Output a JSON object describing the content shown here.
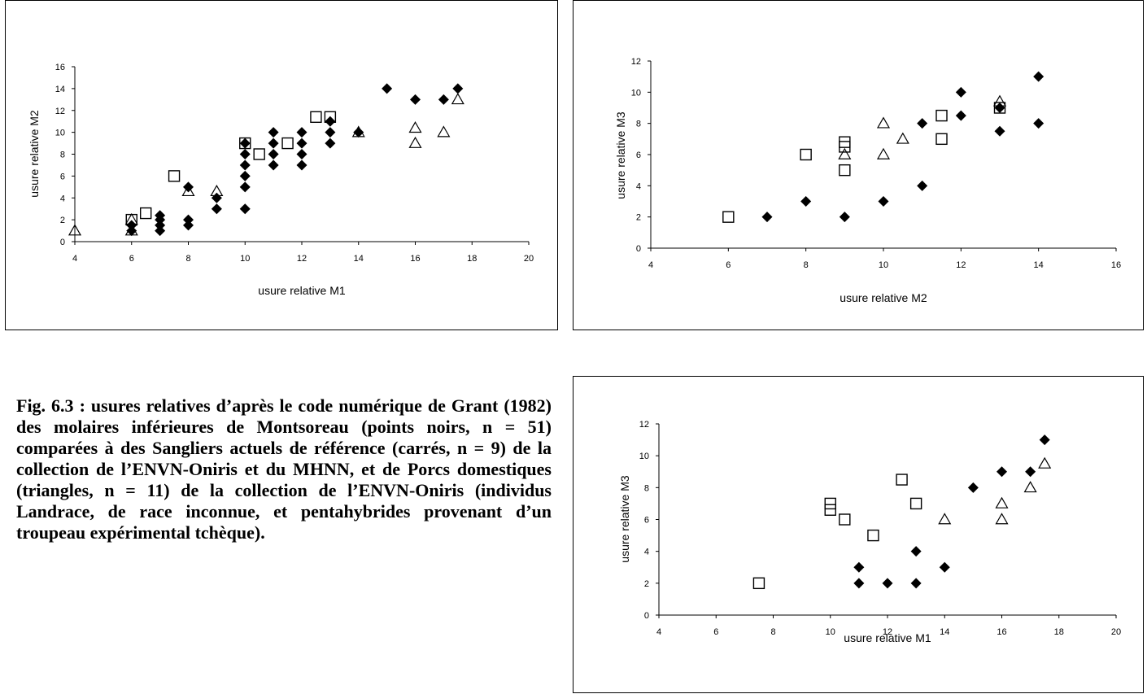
{
  "caption": "Fig. 6.3 : usures relatives d’après le code numérique de Grant (1982) des molaires inférieures de Montsoreau (points noirs, n = 51) comparées à des Sangliers actuels de référence (carrés, n = 9) de la collection de l’ENVN-Oniris et du MHNN, et de Porcs domestiques (triangles, n = 11) de la collection de l’ENVN-Oniris (individus Landrace, de race inconnue, et pentahybrides provenant d’un troupeau expérimental tchèque).",
  "colors": {
    "marker": "#000000",
    "background": "#ffffff"
  },
  "chart_data": [
    {
      "type": "scatter",
      "xlabel": "usure relative M1",
      "ylabel": "usure relative M2",
      "xlim": [
        4,
        20
      ],
      "ylim": [
        0,
        16
      ],
      "xticks": [
        4,
        6,
        8,
        10,
        12,
        14,
        16,
        18,
        20
      ],
      "yticks": [
        0,
        2,
        4,
        6,
        8,
        10,
        12,
        14,
        16
      ],
      "grid": false,
      "series": [
        {
          "marker": "diamond-filled",
          "points": [
            [
              6,
              1
            ],
            [
              6,
              1.5
            ],
            [
              7,
              1
            ],
            [
              7,
              1.5
            ],
            [
              7,
              2
            ],
            [
              7,
              2.4
            ],
            [
              8,
              1.5
            ],
            [
              8,
              2
            ],
            [
              8,
              5
            ],
            [
              9,
              3
            ],
            [
              9,
              4
            ],
            [
              10,
              3
            ],
            [
              10,
              5
            ],
            [
              10,
              6
            ],
            [
              10,
              7
            ],
            [
              10,
              8
            ],
            [
              10,
              9
            ],
            [
              11,
              7
            ],
            [
              11,
              8
            ],
            [
              11,
              9
            ],
            [
              11,
              10
            ],
            [
              12,
              7
            ],
            [
              12,
              8
            ],
            [
              12,
              9
            ],
            [
              12,
              10
            ],
            [
              13,
              9
            ],
            [
              13,
              10
            ],
            [
              13,
              11
            ],
            [
              14,
              10
            ],
            [
              15,
              14
            ],
            [
              16,
              13
            ],
            [
              17,
              13
            ],
            [
              17.5,
              14
            ]
          ]
        },
        {
          "marker": "square-open",
          "points": [
            [
              6,
              2
            ],
            [
              6.5,
              2.6
            ],
            [
              7.5,
              6
            ],
            [
              10,
              9
            ],
            [
              10.5,
              8
            ],
            [
              11.5,
              9
            ],
            [
              12.5,
              11.4
            ],
            [
              13,
              11.4
            ]
          ]
        },
        {
          "marker": "triangle-open",
          "points": [
            [
              4,
              1
            ],
            [
              6,
              1
            ],
            [
              6,
              2
            ],
            [
              8,
              4.6
            ],
            [
              9,
              4.6
            ],
            [
              14,
              10
            ],
            [
              16,
              9
            ],
            [
              16,
              10.4
            ],
            [
              17,
              10
            ],
            [
              17.5,
              13
            ]
          ]
        }
      ]
    },
    {
      "type": "scatter",
      "xlabel": "usure relative M2",
      "ylabel": "usure relative M3",
      "xlim": [
        4,
        16
      ],
      "ylim": [
        0,
        12
      ],
      "xticks": [
        4,
        6,
        8,
        10,
        12,
        14,
        16
      ],
      "yticks": [
        0,
        2,
        4,
        6,
        8,
        10,
        12
      ],
      "grid": false,
      "series": [
        {
          "marker": "diamond-filled",
          "points": [
            [
              7,
              2
            ],
            [
              8,
              3
            ],
            [
              9,
              2
            ],
            [
              10,
              3
            ],
            [
              11,
              4
            ],
            [
              11,
              8
            ],
            [
              12,
              8.5
            ],
            [
              12,
              10
            ],
            [
              13,
              7.5
            ],
            [
              13,
              9
            ],
            [
              14,
              8
            ],
            [
              14,
              11
            ]
          ]
        },
        {
          "marker": "square-open",
          "points": [
            [
              6,
              2
            ],
            [
              8,
              6
            ],
            [
              9,
              5
            ],
            [
              9,
              6.5
            ],
            [
              9,
              6.8
            ],
            [
              11.5,
              7
            ],
            [
              11.5,
              8.5
            ],
            [
              13,
              9
            ]
          ]
        },
        {
          "marker": "triangle-open",
          "points": [
            [
              9,
              6
            ],
            [
              10,
              6
            ],
            [
              10,
              8
            ],
            [
              10.5,
              7
            ],
            [
              13,
              9.4
            ]
          ]
        }
      ]
    },
    {
      "type": "scatter",
      "xlabel": "usure relative M1",
      "ylabel": "usure relative M3",
      "xlim": [
        4,
        20
      ],
      "ylim": [
        0,
        12
      ],
      "xticks": [
        4,
        6,
        8,
        10,
        12,
        14,
        16,
        18,
        20
      ],
      "yticks": [
        0,
        2,
        4,
        6,
        8,
        10,
        12
      ],
      "grid": false,
      "series": [
        {
          "marker": "diamond-filled",
          "points": [
            [
              11,
              2
            ],
            [
              11,
              3
            ],
            [
              12,
              2
            ],
            [
              13,
              2
            ],
            [
              13,
              4
            ],
            [
              14,
              3
            ],
            [
              15,
              8
            ],
            [
              16,
              9
            ],
            [
              17,
              9
            ],
            [
              17.5,
              11
            ]
          ]
        },
        {
          "marker": "square-open",
          "points": [
            [
              7.5,
              2
            ],
            [
              10,
              6.6
            ],
            [
              10,
              7
            ],
            [
              10.5,
              6
            ],
            [
              11.5,
              5
            ],
            [
              12.5,
              8.5
            ],
            [
              13,
              7
            ]
          ]
        },
        {
          "marker": "triangle-open",
          "points": [
            [
              14,
              6
            ],
            [
              16,
              6
            ],
            [
              16,
              7
            ],
            [
              17,
              8
            ],
            [
              17.5,
              9.5
            ]
          ]
        }
      ]
    }
  ]
}
